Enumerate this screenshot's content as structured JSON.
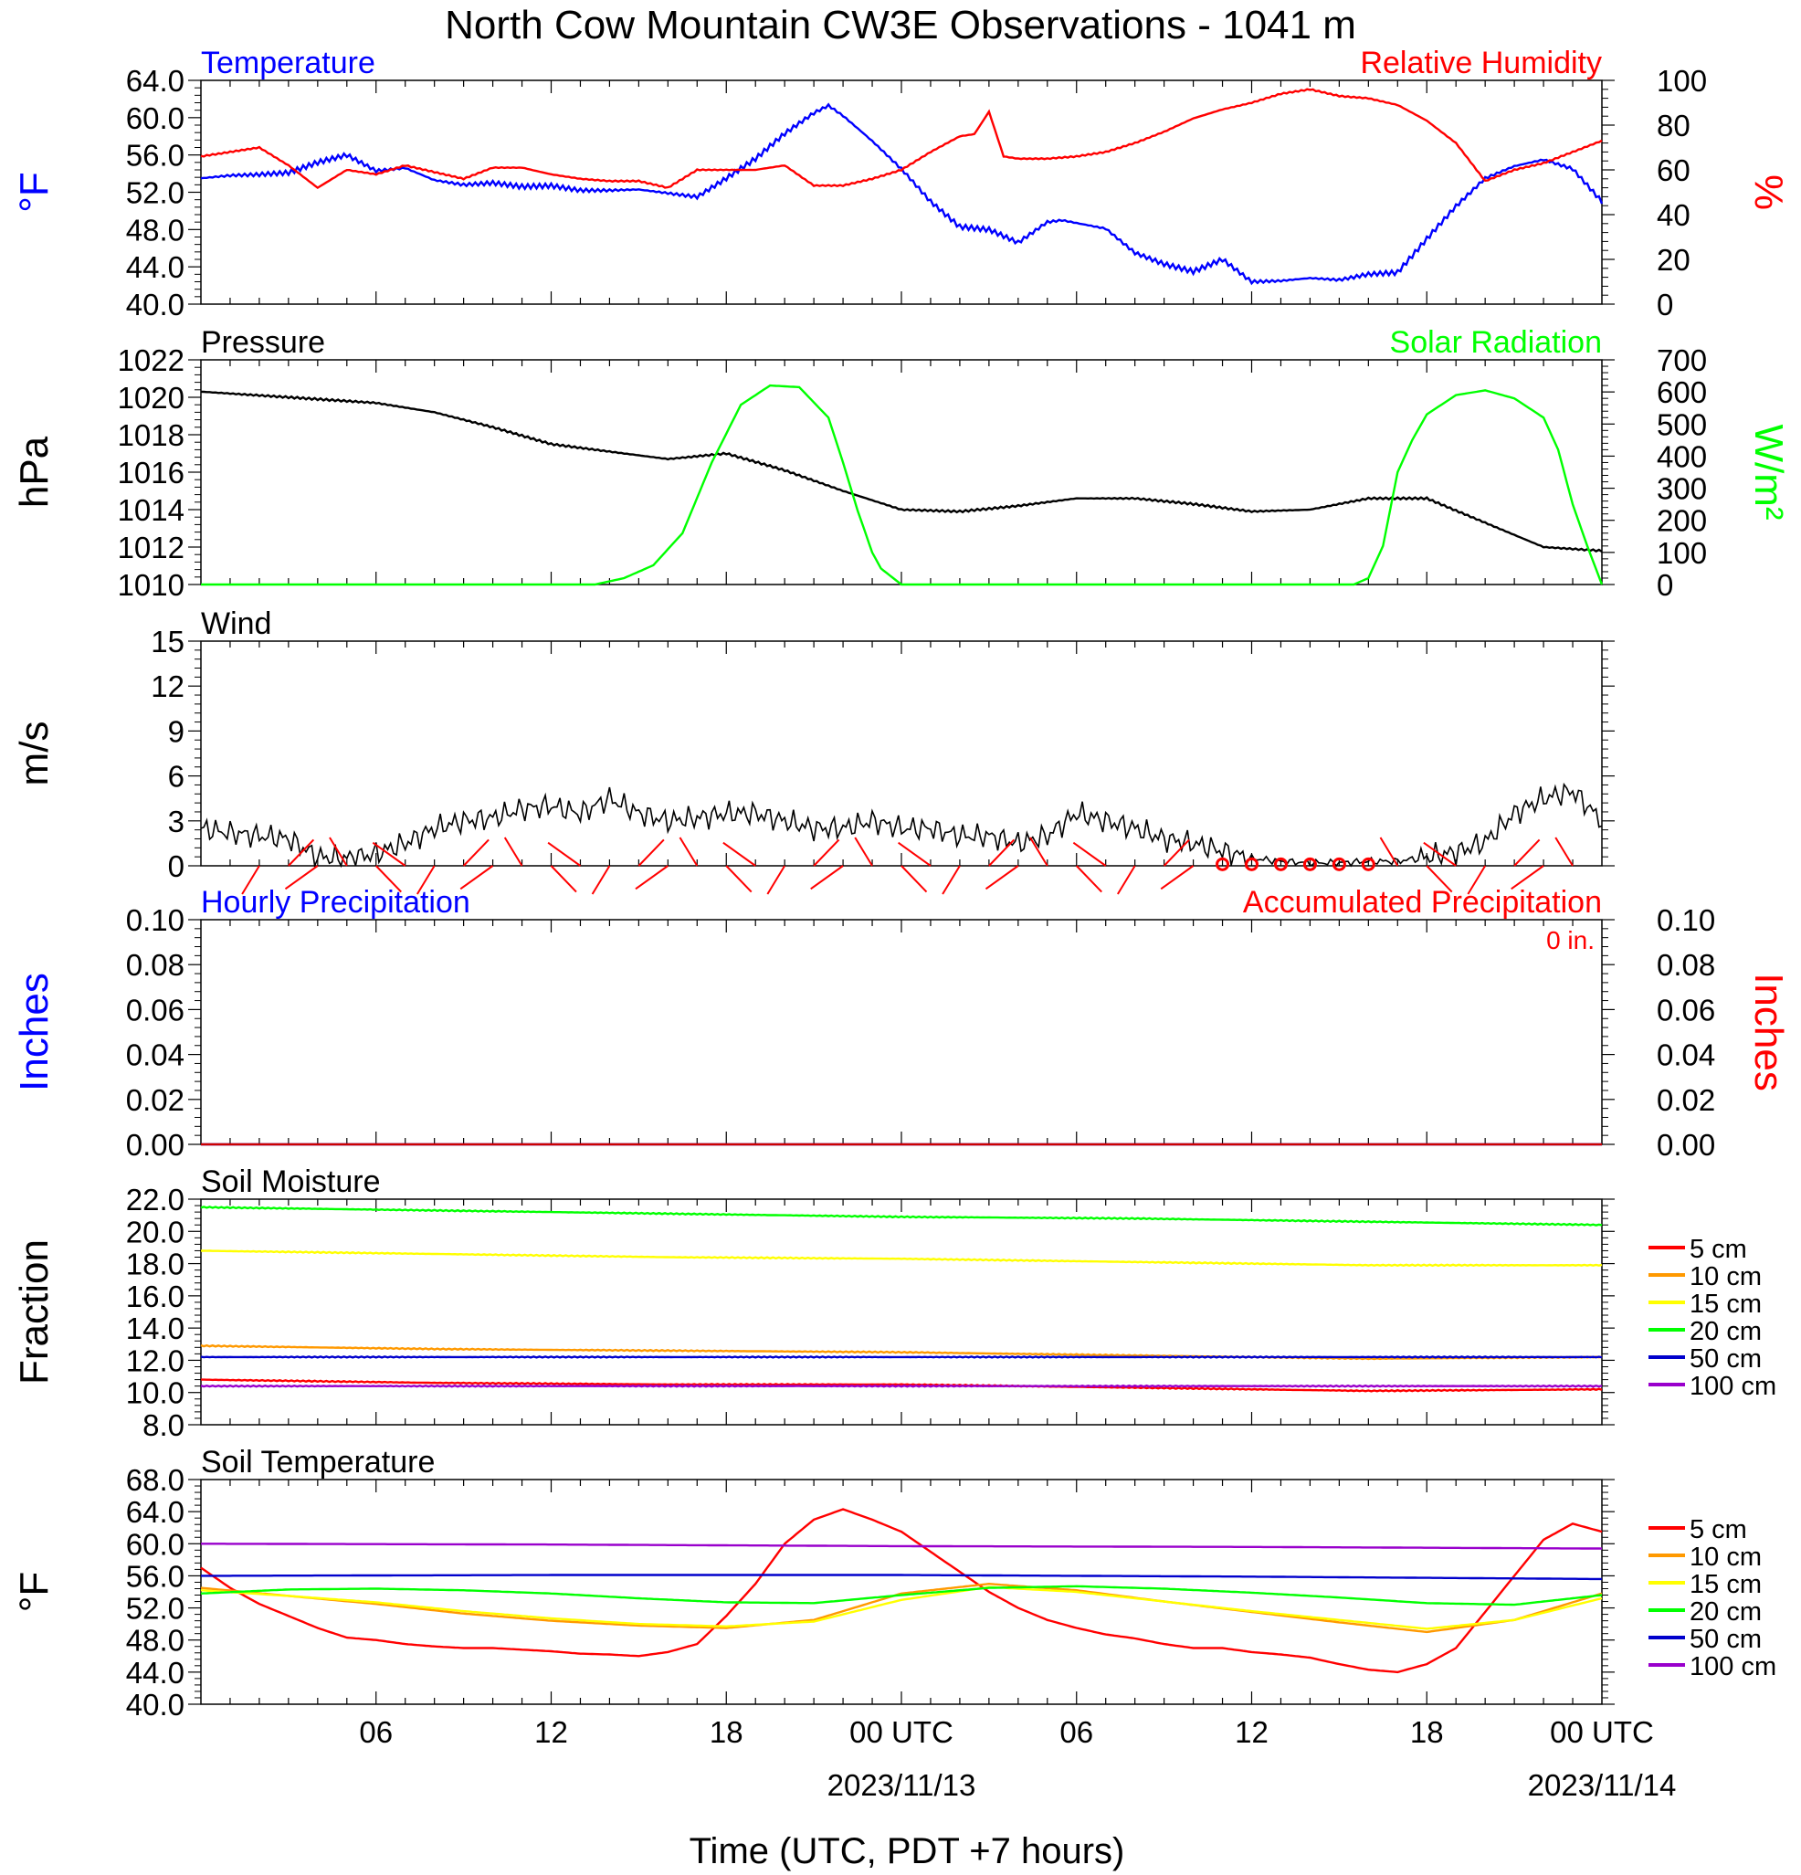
{
  "title": "North Cow Mountain CW3E Observations - 1041 m",
  "x_axis": {
    "label": "Time (UTC, PDT +7 hours)",
    "range_hours": [
      0,
      48
    ],
    "ticks": [
      {
        "hour": 6,
        "label": "06",
        "date": ""
      },
      {
        "hour": 12,
        "label": "12",
        "date": ""
      },
      {
        "hour": 18,
        "label": "18",
        "date": ""
      },
      {
        "hour": 24,
        "label": "00 UTC",
        "date": "2023/11/13"
      },
      {
        "hour": 30,
        "label": "06",
        "date": ""
      },
      {
        "hour": 36,
        "label": "12",
        "date": ""
      },
      {
        "hour": 42,
        "label": "18",
        "date": ""
      },
      {
        "hour": 48,
        "label": "00 UTC",
        "date": "2023/11/14"
      }
    ]
  },
  "colors": {
    "temperature": "#0000ff",
    "humidity": "#ff0000",
    "pressure": "#000000",
    "solar": "#00ff00",
    "wind": "#000000",
    "barb": "#ff0000",
    "hourly_precip": "#0000ff",
    "accum_precip": "#ff0000",
    "d5": "#ff0000",
    "d10": "#ff9900",
    "d15": "#ffff00",
    "d20": "#00ff00",
    "d50": "#0000cc",
    "d100": "#9900cc"
  },
  "chart_data": [
    {
      "id": "temp_rh",
      "type": "line",
      "title_left": "Temperature",
      "title_right": "Relative Humidity",
      "ylabel_left": "°F",
      "ylabel_right": "%",
      "ylim_left": [
        40,
        64
      ],
      "ylim_right": [
        0,
        100
      ],
      "yticks_left": [
        "40.0",
        "44.0",
        "48.0",
        "52.0",
        "56.0",
        "60.0",
        "64.0"
      ],
      "yticks_right": [
        "0",
        "20",
        "40",
        "60",
        "80",
        "100"
      ],
      "series": [
        {
          "name": "Temperature",
          "axis": "left",
          "color": "#0000ff",
          "x": [
            0,
            1,
            2,
            3,
            4,
            5,
            6,
            7,
            8,
            9,
            10,
            11,
            12,
            13,
            14,
            15,
            16,
            17,
            18,
            19,
            20,
            21,
            21.5,
            22,
            23,
            24,
            25,
            26,
            27,
            28,
            29,
            29.5,
            30,
            31,
            32,
            33,
            34,
            35,
            36,
            37,
            38,
            39,
            40,
            41,
            42,
            43,
            44,
            45,
            46,
            47,
            48
          ],
          "y": [
            53.5,
            53.8,
            53.9,
            54.1,
            55.2,
            56,
            54.3,
            54.6,
            53.3,
            52.8,
            53,
            52.6,
            52.7,
            52.2,
            52.2,
            52.3,
            51.9,
            51.5,
            53.5,
            55.6,
            58.3,
            60.5,
            61.3,
            60.2,
            57.5,
            54.5,
            51,
            48.3,
            48,
            46.6,
            48.8,
            49,
            48.7,
            48.1,
            45.5,
            44.3,
            43.5,
            44.8,
            42.4,
            42.5,
            42.8,
            42.6,
            43.2,
            43.4,
            47,
            50.5,
            53.5,
            54.8,
            55.5,
            54.5,
            51
          ]
        },
        {
          "name": "Relative Humidity",
          "axis": "right",
          "color": "#ff0000",
          "x": [
            0,
            1,
            2,
            3,
            4,
            5,
            6,
            7,
            8,
            9,
            10,
            11,
            12,
            13,
            14,
            15,
            16,
            17,
            18,
            19,
            20,
            21,
            22,
            23,
            24,
            25,
            26,
            26.5,
            27,
            27.5,
            28,
            29,
            30,
            31,
            32,
            33,
            34,
            35,
            36,
            37,
            38,
            39,
            40,
            41,
            42,
            43,
            44,
            45,
            46,
            47,
            48
          ],
          "y": [
            66,
            68,
            70,
            62,
            52,
            60,
            58,
            62,
            59,
            56,
            61,
            61,
            58,
            56,
            55,
            55,
            52,
            60,
            60,
            60,
            62,
            53,
            53,
            56,
            60,
            68,
            75,
            76,
            86,
            66,
            65,
            65,
            66,
            68,
            72,
            77,
            83,
            87,
            90,
            94,
            96,
            93,
            92,
            89,
            82,
            72,
            55,
            60,
            63,
            68,
            73
          ]
        }
      ]
    },
    {
      "id": "press_solar",
      "type": "line",
      "title_left": "Pressure",
      "title_right": "Solar Radiation",
      "ylabel_left": "hPa",
      "ylabel_right": "W/m²",
      "ylim_left": [
        1010,
        1022
      ],
      "ylim_right": [
        0,
        700
      ],
      "yticks_left": [
        "1010",
        "1012",
        "1014",
        "1016",
        "1018",
        "1020",
        "1022"
      ],
      "yticks_right": [
        "0",
        "100",
        "200",
        "300",
        "400",
        "500",
        "600",
        "700"
      ],
      "series": [
        {
          "name": "Pressure",
          "axis": "left",
          "color": "#000000",
          "x": [
            0,
            2,
            4,
            6,
            8,
            10,
            12,
            14,
            16,
            18,
            20,
            22,
            24,
            26,
            28,
            30,
            32,
            34,
            36,
            38,
            40,
            42,
            44,
            46,
            48
          ],
          "y": [
            1020.3,
            1020.1,
            1019.9,
            1019.7,
            1019.2,
            1018.4,
            1017.5,
            1017.1,
            1016.7,
            1017,
            1016.1,
            1015,
            1014,
            1013.9,
            1014.2,
            1014.6,
            1014.6,
            1014.3,
            1013.9,
            1014,
            1014.6,
            1014.6,
            1013.3,
            1012,
            1011.8
          ]
        },
        {
          "name": "Solar Radiation",
          "axis": "right",
          "color": "#00ff00",
          "x": [
            0,
            13.5,
            14.5,
            15.5,
            16.5,
            17.5,
            18.5,
            19.5,
            20.5,
            21.5,
            22,
            22.5,
            23,
            23.3,
            24,
            29,
            39,
            39.5,
            40,
            40.5,
            41,
            41.5,
            42,
            43,
            44,
            45,
            46,
            46.5,
            47,
            47.5,
            48
          ],
          "y": [
            0,
            0,
            20,
            60,
            160,
            380,
            560,
            620,
            615,
            520,
            380,
            230,
            100,
            50,
            0,
            0,
            0,
            0,
            20,
            120,
            350,
            450,
            530,
            590,
            605,
            580,
            520,
            420,
            250,
            120,
            0
          ]
        }
      ]
    },
    {
      "id": "wind",
      "type": "line",
      "title_left": "Wind",
      "ylabel_left": "m/s",
      "ylim_left": [
        0,
        15
      ],
      "yticks_left": [
        "0",
        "3",
        "6",
        "9",
        "12",
        "15"
      ],
      "series": [
        {
          "name": "Wind",
          "axis": "left",
          "color": "#000000",
          "x": [
            0,
            1,
            2,
            3,
            4,
            5,
            6,
            7,
            8,
            9,
            10,
            11,
            12,
            13,
            14,
            15,
            16,
            17,
            18,
            19,
            20,
            21,
            22,
            23,
            24,
            25,
            26,
            27,
            28,
            29,
            30,
            31,
            32,
            33,
            34,
            35,
            36,
            37,
            38,
            39,
            40,
            41,
            42,
            43,
            44,
            45,
            46,
            47,
            48
          ],
          "y": [
            2.5,
            2.2,
            2,
            1.8,
            0.6,
            0.5,
            0.8,
            1.5,
            2.5,
            3,
            3.2,
            3.8,
            4,
            3.5,
            4.5,
            3.5,
            3,
            3.2,
            3.5,
            3.5,
            3,
            2.5,
            2.5,
            3,
            2.5,
            2.5,
            2,
            2,
            1.5,
            2,
            3.5,
            3,
            2.5,
            1.8,
            1.5,
            1,
            0.5,
            0.3,
            0.2,
            0.2,
            0.3,
            0.3,
            0.6,
            0.9,
            1.6,
            3.5,
            4.5,
            5,
            3
          ]
        }
      ],
      "barb_hours": [
        2,
        3,
        4,
        5,
        6,
        7,
        8,
        9,
        10,
        11,
        12,
        13,
        14,
        15,
        16,
        17,
        18,
        19,
        20,
        21,
        22,
        23,
        24,
        25,
        26,
        27,
        28,
        29,
        30,
        31,
        32,
        33,
        34,
        35,
        36,
        37,
        38,
        39,
        40,
        41,
        42,
        43,
        44,
        45,
        46,
        47
      ],
      "calm_hours": [
        35,
        36,
        37,
        38,
        39,
        40
      ]
    },
    {
      "id": "precip",
      "type": "line",
      "title_left": "Hourly Precipitation",
      "title_right": "Accumulated Precipitation",
      "total_label": "0 in.",
      "ylabel_left": "Inches",
      "ylabel_right": "Inches",
      "ylim_left": [
        0,
        0.1
      ],
      "ylim_right": [
        0,
        0.1
      ],
      "yticks_left": [
        "0.00",
        "0.02",
        "0.04",
        "0.06",
        "0.08",
        "0.10"
      ],
      "yticks_right": [
        "0.00",
        "0.02",
        "0.04",
        "0.06",
        "0.08",
        "0.10"
      ],
      "series": [
        {
          "name": "Hourly Precipitation",
          "axis": "left",
          "color": "#0000ff",
          "x": [
            0,
            48
          ],
          "y": [
            0,
            0
          ]
        },
        {
          "name": "Accumulated Precipitation",
          "axis": "left",
          "color": "#cc0000",
          "x": [
            0,
            48
          ],
          "y": [
            0,
            0
          ]
        }
      ]
    },
    {
      "id": "soil_moisture",
      "type": "line",
      "title_left": "Soil Moisture",
      "ylabel_left": "Fraction",
      "ylim_left": [
        8,
        22
      ],
      "yticks_left": [
        "8.0",
        "10.0",
        "12.0",
        "14.0",
        "16.0",
        "18.0",
        "20.0",
        "22.0"
      ],
      "series": [
        {
          "name": "5 cm",
          "color": "#ff0000",
          "x": [
            0,
            8,
            16,
            24,
            32,
            40,
            48
          ],
          "y": [
            10.8,
            10.6,
            10.5,
            10.5,
            10.3,
            10.1,
            10.2
          ]
        },
        {
          "name": "10 cm",
          "color": "#ff9900",
          "x": [
            0,
            8,
            16,
            24,
            32,
            40,
            48
          ],
          "y": [
            12.9,
            12.7,
            12.6,
            12.5,
            12.3,
            12.1,
            12.2
          ]
        },
        {
          "name": "15 cm",
          "color": "#ffff00",
          "x": [
            0,
            8,
            16,
            24,
            32,
            40,
            48
          ],
          "y": [
            18.8,
            18.6,
            18.4,
            18.3,
            18.1,
            17.9,
            17.9
          ]
        },
        {
          "name": "20 cm",
          "color": "#00ff00",
          "x": [
            0,
            8,
            16,
            24,
            32,
            40,
            48
          ],
          "y": [
            21.5,
            21.3,
            21.1,
            20.9,
            20.8,
            20.6,
            20.4
          ]
        },
        {
          "name": "50 cm",
          "color": "#0000cc",
          "x": [
            0,
            8,
            16,
            24,
            32,
            40,
            48
          ],
          "y": [
            12.2,
            12.2,
            12.2,
            12.2,
            12.2,
            12.2,
            12.2
          ]
        },
        {
          "name": "100 cm",
          "color": "#9900cc",
          "x": [
            0,
            8,
            16,
            24,
            32,
            40,
            48
          ],
          "y": [
            10.4,
            10.4,
            10.4,
            10.4,
            10.4,
            10.4,
            10.4
          ]
        }
      ]
    },
    {
      "id": "soil_temperature",
      "type": "line",
      "title_left": "Soil Temperature",
      "ylabel_left": "°F",
      "ylim_left": [
        40,
        68
      ],
      "yticks_left": [
        "40.0",
        "44.0",
        "48.0",
        "52.0",
        "56.0",
        "60.0",
        "64.0",
        "68.0"
      ],
      "series": [
        {
          "name": "5 cm",
          "color": "#ff0000",
          "x": [
            0,
            1,
            2,
            3,
            4,
            5,
            6,
            7,
            8,
            9,
            10,
            11,
            12,
            13,
            14,
            15,
            16,
            17,
            18,
            19,
            20,
            21,
            22,
            23,
            24,
            25,
            26,
            27,
            28,
            29,
            30,
            31,
            32,
            33,
            34,
            35,
            36,
            37,
            38,
            39,
            40,
            41,
            42,
            43,
            44,
            45,
            46,
            47,
            48
          ],
          "y": [
            57,
            54.5,
            52.5,
            51,
            49.5,
            48.3,
            48,
            47.5,
            47.2,
            47,
            47,
            46.8,
            46.6,
            46.3,
            46.2,
            46,
            46.5,
            47.5,
            51,
            55,
            60,
            63,
            64.3,
            63,
            61.5,
            59,
            56.5,
            54,
            52,
            50.5,
            49.5,
            48.7,
            48.2,
            47.5,
            47,
            47,
            46.5,
            46.2,
            45.8,
            45,
            44.3,
            44,
            45,
            47,
            51.5,
            56,
            60.5,
            62.5,
            61.5
          ]
        },
        {
          "name": "10 cm",
          "color": "#ff9900",
          "x": [
            0,
            3,
            6,
            9,
            12,
            15,
            18,
            21,
            24,
            27,
            30,
            33,
            36,
            39,
            42,
            45,
            48
          ],
          "y": [
            54.5,
            53.5,
            52.5,
            51.3,
            50.4,
            49.8,
            49.5,
            50.5,
            53.8,
            55,
            54.2,
            52.8,
            51.5,
            50.2,
            49,
            50.5,
            53.8
          ]
        },
        {
          "name": "15 cm",
          "color": "#ffff00",
          "x": [
            0,
            3,
            6,
            9,
            12,
            15,
            18,
            21,
            24,
            27,
            30,
            33,
            36,
            39,
            42,
            45,
            48
          ],
          "y": [
            54.2,
            53.5,
            52.7,
            51.6,
            50.7,
            50,
            49.7,
            50.3,
            53,
            54.6,
            54,
            52.8,
            51.6,
            50.5,
            49.4,
            50.5,
            53.2
          ]
        },
        {
          "name": "20 cm",
          "color": "#00ff00",
          "x": [
            0,
            3,
            6,
            9,
            12,
            15,
            18,
            21,
            24,
            27,
            30,
            33,
            36,
            39,
            42,
            45,
            48
          ],
          "y": [
            53.8,
            54.3,
            54.4,
            54.2,
            53.8,
            53.2,
            52.7,
            52.6,
            53.6,
            54.5,
            54.7,
            54.4,
            53.9,
            53.3,
            52.6,
            52.4,
            53.6
          ]
        },
        {
          "name": "50 cm",
          "color": "#0000cc",
          "x": [
            0,
            12,
            24,
            36,
            48
          ],
          "y": [
            56,
            56.1,
            56.1,
            55.9,
            55.6
          ]
        },
        {
          "name": "100 cm",
          "color": "#9900cc",
          "x": [
            0,
            12,
            24,
            36,
            48
          ],
          "y": [
            60,
            59.9,
            59.7,
            59.6,
            59.4
          ]
        }
      ]
    }
  ]
}
